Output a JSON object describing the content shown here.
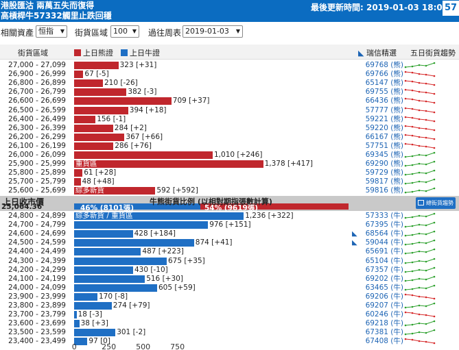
{
  "header": {
    "news_line1": "港股匯沽 兩萬五失而復得",
    "news_line2": "高槓桿牛57332觸里止跌回穩",
    "updated": "最後更新時間: 2019-01-03 18:00",
    "corner_box": "57"
  },
  "controls": {
    "asset_label": "相關資產",
    "asset_value": "恒指",
    "zone_label": "街貨區域",
    "zone_value": "100",
    "week_label": "過往周表",
    "week_value": "2019-01-03"
  },
  "table_header": {
    "zone": "街貨區域",
    "bear_legend": "上日熊證",
    "bull_legend": "上日牛證",
    "pick": "瑞信精選",
    "trend": "五日街貨趨勢"
  },
  "colors": {
    "bear": "#c0272d",
    "bull": "#1f6fc4",
    "header": "#0b6cc1",
    "spark_up": "#2ca02c",
    "spark_down": "#d62728"
  },
  "chart_data": {
    "type": "bar",
    "axis_ticks": [
      "0",
      "250",
      "500",
      "750"
    ],
    "xlim": [
      0,
      1500
    ],
    "bear_rows": [
      {
        "range": "27,000 - 27,099",
        "value": 323,
        "value_text": "323 [+31]",
        "code": "69768 (熊)",
        "trend": "up"
      },
      {
        "range": "26,900 - 26,999",
        "value": 67,
        "value_text": "67 [-5]",
        "code": "69766 (熊)",
        "trend": "down"
      },
      {
        "range": "26,800 - 26,899",
        "value": 210,
        "value_text": "210 [-26]",
        "code": "65147 (熊)",
        "trend": "down"
      },
      {
        "range": "26,700 - 26,799",
        "value": 382,
        "value_text": "382 [-3]",
        "code": "69755 (熊)",
        "trend": "down"
      },
      {
        "range": "26,600 - 26,699",
        "value": 709,
        "value_text": "709 [+37]",
        "code": "66436 (熊)",
        "trend": "down"
      },
      {
        "range": "26,500 - 26,599",
        "value": 394,
        "value_text": "394 [+18]",
        "code": "57777 (熊)",
        "trend": "down"
      },
      {
        "range": "26,400 - 26,499",
        "value": 156,
        "value_text": "156 [-1]",
        "code": "59221 (熊)",
        "trend": "down"
      },
      {
        "range": "26,300 - 26,399",
        "value": 284,
        "value_text": "284 [+2]",
        "code": "59220 (熊)",
        "trend": "down"
      },
      {
        "range": "26,200 - 26,299",
        "value": 367,
        "value_text": "367 [+66]",
        "code": "66167 (熊)",
        "trend": "down"
      },
      {
        "range": "26,100 - 26,199",
        "value": 286,
        "value_text": "286 [+76]",
        "code": "57751 (熊)",
        "trend": "down"
      },
      {
        "range": "26,000 - 26,099",
        "value": 1010,
        "value_text": "1,010 [+246]",
        "code": "69345 (熊)",
        "trend": "up"
      },
      {
        "range": "25,900 - 25,999",
        "value": 1378,
        "value_text": "1,378 [+417]",
        "code": "69290 (熊)",
        "trend": "up",
        "bar_label": "重貨區"
      },
      {
        "range": "25,800 - 25,899",
        "value": 61,
        "value_text": "61 [+28]",
        "code": "59729 (熊)",
        "trend": "up"
      },
      {
        "range": "25,700 - 25,799",
        "value": 48,
        "value_text": "48 [+48]",
        "code": "59817 (熊)",
        "trend": "up"
      },
      {
        "range": "25,600 - 25,699",
        "value": 592,
        "value_text": "592 [+592]",
        "code": "59816 (熊)",
        "trend": "up",
        "bar_label": "綜多新貨"
      }
    ],
    "bull_rows": [
      {
        "range": "24,800 - 24,899",
        "value": 1236,
        "value_text": "1,236 [+322]",
        "code": "57333 (牛)",
        "trend": "up",
        "bar_label": "綜多新貨 / 重貨區"
      },
      {
        "range": "24,700 - 24,799",
        "value": 976,
        "value_text": "976 [+151]",
        "code": "67395 (牛)",
        "trend": "up"
      },
      {
        "range": "24,600 - 24,699",
        "value": 428,
        "value_text": "428 [+184]",
        "code": "68564 (牛)",
        "trend": "up",
        "pick": true
      },
      {
        "range": "24,500 - 24,599",
        "value": 874,
        "value_text": "874 [+41]",
        "code": "59044 (牛)",
        "trend": "up",
        "pick": true
      },
      {
        "range": "24,400 - 24,499",
        "value": 487,
        "value_text": "487 [+223]",
        "code": "65691 (牛)",
        "trend": "up"
      },
      {
        "range": "24,300 - 24,399",
        "value": 675,
        "value_text": "675 [+35]",
        "code": "65104 (牛)",
        "trend": "up"
      },
      {
        "range": "24,200 - 24,299",
        "value": 430,
        "value_text": "430 [-10]",
        "code": "67357 (牛)",
        "trend": "up"
      },
      {
        "range": "24,100 - 24,199",
        "value": 516,
        "value_text": "516 [+30]",
        "code": "69202 (牛)",
        "trend": "up"
      },
      {
        "range": "24,000 - 24,099",
        "value": 605,
        "value_text": "605 [+59]",
        "code": "63465 (牛)",
        "trend": "up"
      },
      {
        "range": "23,900 - 23,999",
        "value": 170,
        "value_text": "170 [-8]",
        "code": "69206 (牛)",
        "trend": "down"
      },
      {
        "range": "23,800 - 23,899",
        "value": 274,
        "value_text": "274 [+79]",
        "code": "69207 (牛)",
        "trend": "up"
      },
      {
        "range": "23,700 - 23,799",
        "value": 18,
        "value_text": "18 [-3]",
        "code": "60246 (牛)",
        "trend": "down"
      },
      {
        "range": "23,600 - 23,699",
        "value": 38,
        "value_text": "38 [+3]",
        "code": "69218 (牛)",
        "trend": "up"
      },
      {
        "range": "23,500 - 23,599",
        "value": 301,
        "value_text": "301 [-2]",
        "code": "67381 (牛)",
        "trend": "up"
      },
      {
        "range": "23,400 - 23,499",
        "value": 97,
        "value_text": "97 [0]",
        "code": "67408 (牛)",
        "trend": "down"
      }
    ]
  },
  "middle": {
    "prev_close_label": "上日收市價",
    "prev_close_value": "25,064.36",
    "ratio_label": "牛熊街貨比例 (以相對期指張數計算)",
    "bull_pct": 46,
    "bull_text": "46% (8101張)",
    "bear_text": "54% (9619張)",
    "button": "總街貨趨勢"
  }
}
